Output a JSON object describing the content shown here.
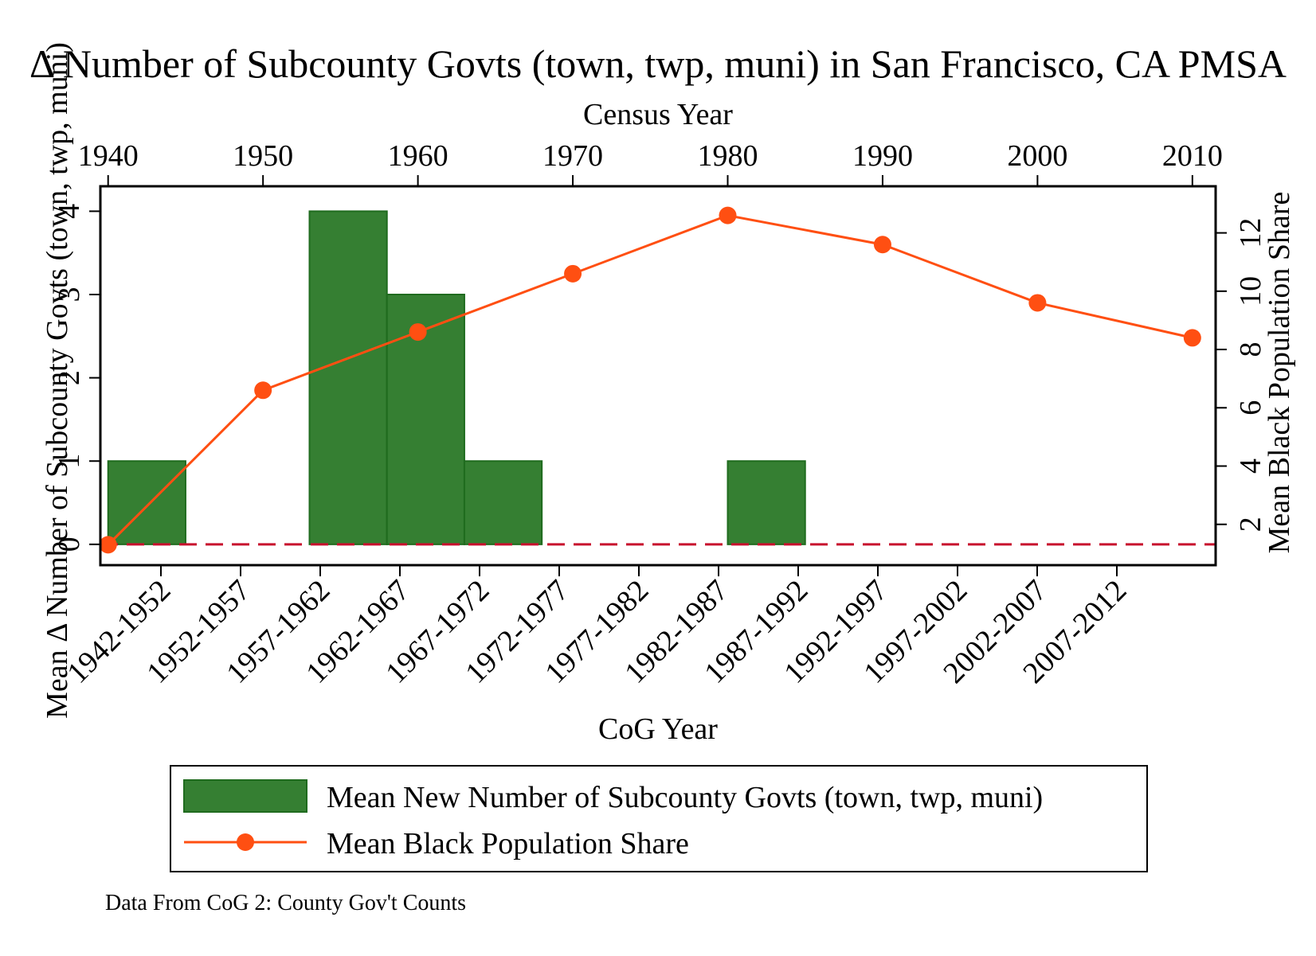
{
  "colors": {
    "bar_fill": "#357f32",
    "bar_stroke": "#1f6b1e",
    "line": "#ff4f12",
    "zero_line": "#c8102e",
    "frame": "#000000",
    "background": "#ffffff"
  },
  "chart_data": {
    "type": "bar+line",
    "title": "Δ Number of Subcounty Govts (town, twp, muni) in San Francisco, CA PMSA",
    "note": "Data From CoG 2: County Gov't Counts",
    "x_bottom": {
      "label": "CoG Year",
      "categories": [
        "1942-1952",
        "1952-1957",
        "1957-1962",
        "1962-1967",
        "1967-1972",
        "1972-1977",
        "1977-1982",
        "1982-1987",
        "1987-1992",
        "1992-1997",
        "1997-2002",
        "2002-2007",
        "2007-2012"
      ]
    },
    "x_top": {
      "label": "Census Year",
      "ticks": [
        1940,
        1950,
        1960,
        1970,
        1980,
        1990,
        2000,
        2010
      ],
      "range": [
        1939.5,
        2011.5
      ]
    },
    "y_left": {
      "label": "Mean Δ Number of Subcounty Govts (town, twp, muni)",
      "ticks": [
        0,
        1,
        2,
        3,
        4
      ],
      "range": [
        -0.25,
        4.3
      ]
    },
    "y_right": {
      "label": "Mean Black Population Share",
      "ticks": [
        2,
        4,
        6,
        8,
        10,
        12
      ],
      "range": [
        0.6,
        13.6
      ]
    },
    "bars": {
      "name": "Mean New Number of Subcounty Govts (town, twp, muni)",
      "series": [
        {
          "start": 1940,
          "end": 1945,
          "value": 1
        },
        {
          "start": 1953,
          "end": 1958,
          "value": 4
        },
        {
          "start": 1958,
          "end": 1963,
          "value": 3
        },
        {
          "start": 1963,
          "end": 1968,
          "value": 1
        },
        {
          "start": 1980,
          "end": 1985,
          "value": 1
        }
      ]
    },
    "line": {
      "name": "Mean Black Population Share",
      "x": [
        1940,
        1950,
        1960,
        1970,
        1980,
        1990,
        2000,
        2010
      ],
      "y": [
        1.3,
        6.6,
        8.6,
        10.6,
        12.6,
        11.6,
        9.6,
        8.4
      ]
    },
    "zero_line": {
      "y": 0,
      "style": "dashed"
    },
    "legend": {
      "placement": "bottom",
      "entries": [
        "Mean New Number of Subcounty Govts (town, twp, muni)",
        "Mean Black Population Share"
      ]
    },
    "grid": false
  }
}
